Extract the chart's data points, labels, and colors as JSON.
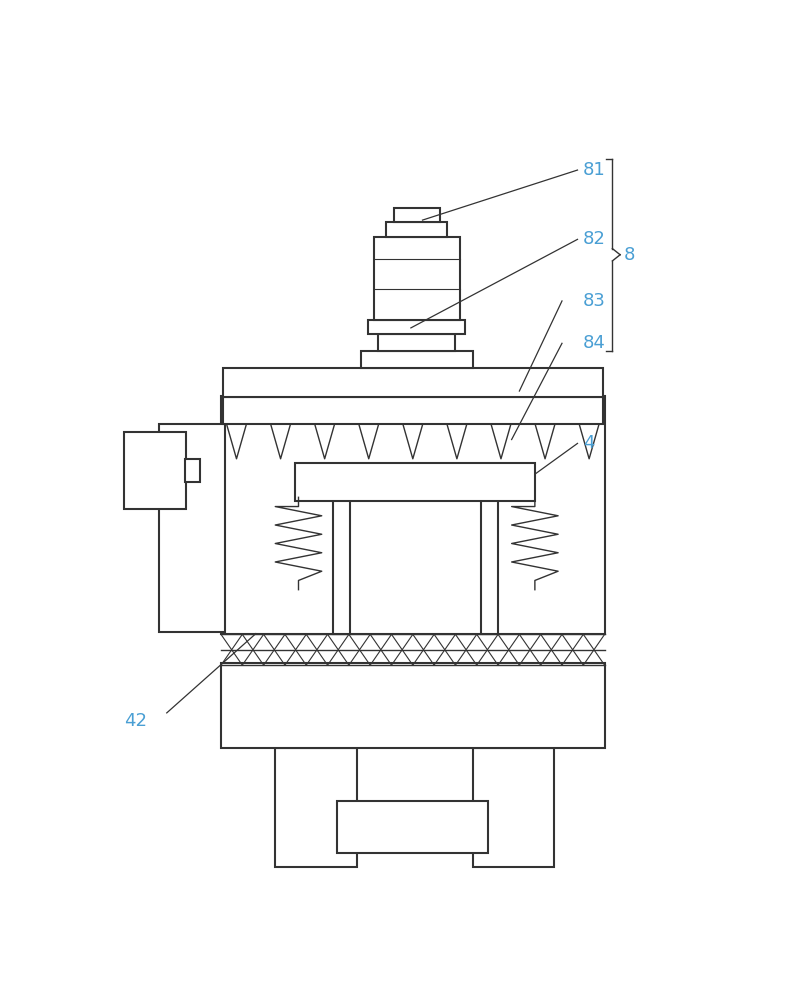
{
  "bg_color": "#ffffff",
  "line_color": "#333333",
  "label_color": "#4a9fd4",
  "fig_width": 8.07,
  "fig_height": 10.0
}
